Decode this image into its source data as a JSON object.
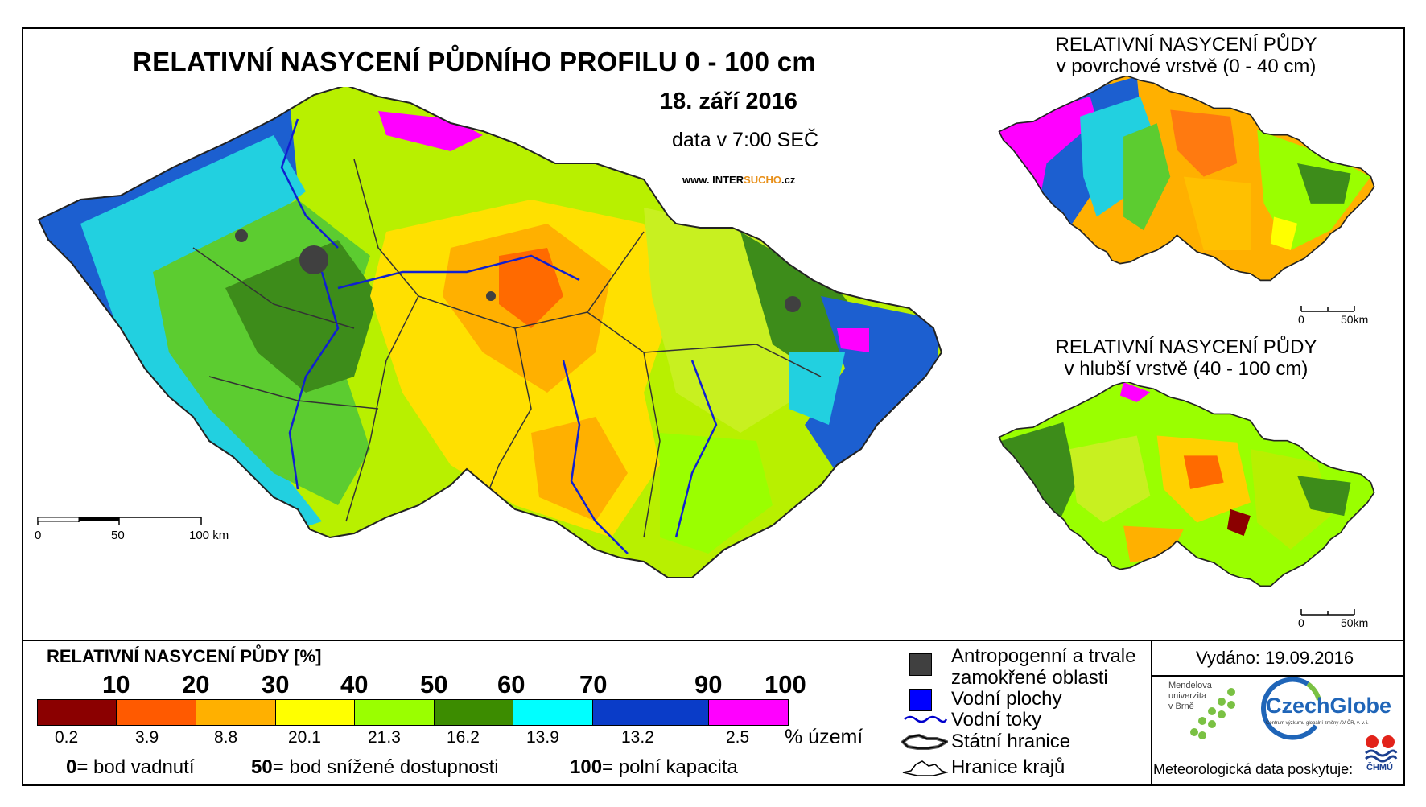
{
  "main": {
    "title": "RELATIVNÍ NASYCENÍ PŮDNÍHO PROFILU 0 - 100 cm",
    "date": "18. září 2016",
    "time": "data v 7:00 SEČ",
    "site_prefix": "www. INTER",
    "site_highlight": "SUCHO",
    "site_suffix": ".cz",
    "scale": {
      "t0": "0",
      "t50": "50",
      "t100": "100 km"
    }
  },
  "inset_top": {
    "title_line1": "RELATIVNÍ NASYCENÍ PŮDY",
    "title_line2": "v povrchové vrstvě (0 - 40 cm)",
    "scale": {
      "t0": "0",
      "t50": "50km"
    }
  },
  "inset_bottom": {
    "title_line1": "RELATIVNÍ NASYCENÍ PŮDY",
    "title_line2": "v hlubší vrstvě (40 - 100 cm)",
    "scale": {
      "t0": "0",
      "t50": "50km"
    }
  },
  "legend": {
    "title": "RELATIVNÍ NASYCENÍ PŮDY [%]",
    "ticks": [
      "10",
      "20",
      "30",
      "40",
      "50",
      "60",
      "70",
      "90",
      "100"
    ],
    "colors": [
      "#8b0000",
      "#ff5a00",
      "#ffb000",
      "#ffff00",
      "#9aff00",
      "#3c8c00",
      "#00ffff",
      "#0a3cc8",
      "#ff00ff"
    ],
    "percentages": [
      "0.2",
      "3.9",
      "8.8",
      "20.1",
      "21.3",
      "16.2",
      "13.9",
      "13.2",
      "2.5"
    ],
    "pct_unit": "% území",
    "expl": [
      {
        "num": "0",
        "text": "= bod vadnutí"
      },
      {
        "num": "50",
        "text": "= bod snížené dostupnosti"
      },
      {
        "num": "100",
        "text": "= polní kapacita"
      }
    ]
  },
  "symbols": {
    "antropogenni_line1": "Antropogenní a trvale",
    "antropogenni_line2": "zamokřené oblasti",
    "vodni_plochy": "Vodní plochy",
    "vodni_toky": "Vodní toky",
    "statni_hranice": "Státní hranice",
    "hranice_kraju": "Hranice krajů",
    "colors": {
      "antropogenni": "#404040",
      "vodni_plochy": "#0000ff",
      "vodni_toky": "#0000cc"
    }
  },
  "issued": {
    "label": "Vydáno: 19.09.2016",
    "mendel_line1": "Mendelova",
    "mendel_line2": "univerzita",
    "mendel_line3": "v Brně",
    "czechglobe": "CzechGlobe",
    "czechglobe_sub": "Centrum výzkumu globální změny AV ČR, v. v. i.",
    "meteo": "Meteorologická data poskytuje:",
    "chmu": "ČHMÚ"
  }
}
